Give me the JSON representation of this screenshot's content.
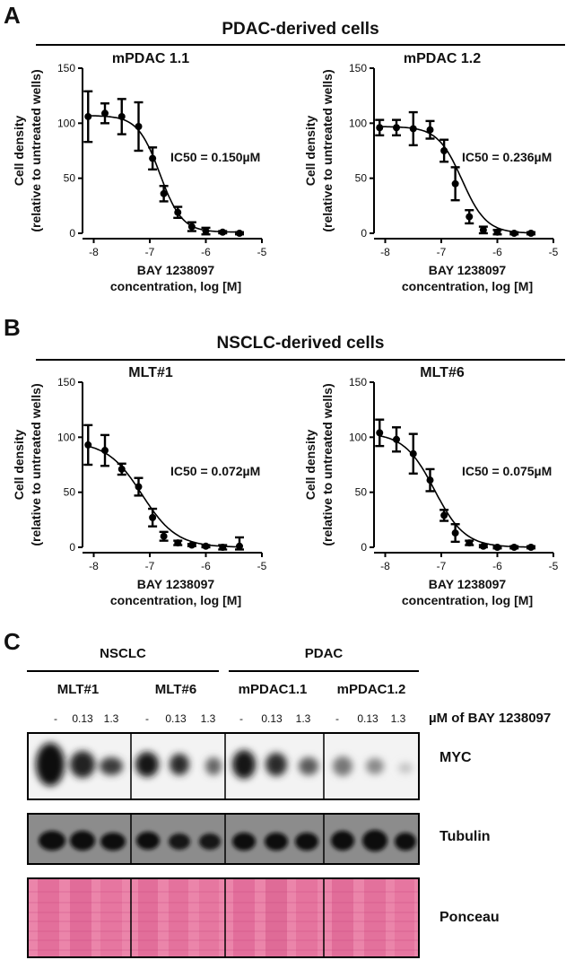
{
  "panels": {
    "A": {
      "letter": "A",
      "title": "PDAC-derived cells"
    },
    "B": {
      "letter": "B",
      "title": "NSCLC-derived cells"
    },
    "C": {
      "letter": "C"
    }
  },
  "axis_common": {
    "ylabel_line1": "Cell density",
    "ylabel_line2": "(relative to untreated wells)",
    "xlabel_line1": "BAY 1238097",
    "xlabel_line2": "concentration, log [M]"
  },
  "chart_data": [
    {
      "type": "scatter",
      "title": "mPDAC 1.1",
      "annotation": "IC50 = 0.150µM",
      "xlabel": "BAY 1238097 concentration, log [M]",
      "ylabel": "Cell density (relative to untreated wells)",
      "xlim": [
        -8.2,
        -5
      ],
      "ylim": [
        0,
        150
      ],
      "xticks": [
        -8,
        -7,
        -6,
        -5
      ],
      "xtick_labels": [
        "-8",
        "-7",
        "-6",
        "-5"
      ],
      "yticks": [
        0,
        50,
        100,
        150
      ],
      "ytick_labels": [
        "0",
        "50",
        "100",
        "150"
      ],
      "x": [
        -8.1,
        -7.8,
        -7.5,
        -7.2,
        -6.95,
        -6.75,
        -6.5,
        -6.25,
        -6.0,
        -5.7,
        -5.4
      ],
      "y": [
        106,
        109,
        106,
        97,
        68,
        36,
        19,
        6,
        2,
        1,
        0
      ],
      "err": [
        23,
        9,
        16,
        22,
        10,
        7,
        5,
        4,
        3,
        1,
        1
      ],
      "fit": {
        "top": 107,
        "bottom": 1,
        "log_ic50": -6.82,
        "hill": 2.2
      }
    },
    {
      "type": "scatter",
      "title": "mPDAC 1.2",
      "annotation": "IC50 = 0.236µM",
      "xlabel": "BAY 1238097 concentration, log [M]",
      "ylabel": "Cell density (relative to untreated wells)",
      "xlim": [
        -8.2,
        -5
      ],
      "ylim": [
        0,
        150
      ],
      "xticks": [
        -8,
        -7,
        -6,
        -5
      ],
      "xtick_labels": [
        "-8",
        "-7",
        "-6",
        "-5"
      ],
      "yticks": [
        0,
        50,
        100,
        150
      ],
      "ytick_labels": [
        "0",
        "50",
        "100",
        "150"
      ],
      "x": [
        -8.1,
        -7.8,
        -7.5,
        -7.2,
        -6.95,
        -6.75,
        -6.5,
        -6.25,
        -6.0,
        -5.7,
        -5.4
      ],
      "y": [
        96,
        96,
        95,
        94,
        75,
        45,
        15,
        3,
        1,
        0,
        0
      ],
      "err": [
        7,
        7,
        15,
        8,
        10,
        15,
        6,
        3,
        2,
        1,
        1
      ],
      "fit": {
        "top": 97,
        "bottom": 0,
        "log_ic50": -6.63,
        "hill": 2.0
      }
    },
    {
      "type": "scatter",
      "title": "MLT#1",
      "annotation": "IC50 = 0.072µM",
      "xlabel": "BAY 1238097 concentration, log [M]",
      "ylabel": "Cell density (relative to untreated wells)",
      "xlim": [
        -8.2,
        -5
      ],
      "ylim": [
        0,
        150
      ],
      "xticks": [
        -8,
        -7,
        -6,
        -5
      ],
      "xtick_labels": [
        "-8",
        "-7",
        "-6",
        "-5"
      ],
      "yticks": [
        0,
        50,
        100,
        150
      ],
      "ytick_labels": [
        "0",
        "50",
        "100",
        "150"
      ],
      "x": [
        -8.1,
        -7.8,
        -7.5,
        -7.2,
        -6.95,
        -6.75,
        -6.5,
        -6.25,
        -6.0,
        -5.7,
        -5.4
      ],
      "y": [
        93,
        88,
        71,
        55,
        27,
        10,
        4,
        2,
        1,
        0,
        1
      ],
      "err": [
        18,
        14,
        5,
        8,
        8,
        4,
        2,
        1,
        1,
        2,
        8
      ],
      "fit": {
        "top": 96,
        "bottom": 0,
        "log_ic50": -7.14,
        "hill": 1.4
      }
    },
    {
      "type": "scatter",
      "title": "MLT#6",
      "annotation": "IC50 = 0.075µM",
      "xlabel": "BAY 1238097 concentration, log [M]",
      "ylabel": "Cell density (relative to untreated wells)",
      "xlim": [
        -8.2,
        -5
      ],
      "ylim": [
        0,
        150
      ],
      "xticks": [
        -8,
        -7,
        -6,
        -5
      ],
      "xtick_labels": [
        "-8",
        "-7",
        "-6",
        "-5"
      ],
      "yticks": [
        0,
        50,
        100,
        150
      ],
      "ytick_labels": [
        "0",
        "50",
        "100",
        "150"
      ],
      "x": [
        -8.1,
        -7.8,
        -7.5,
        -7.2,
        -6.95,
        -6.75,
        -6.5,
        -6.25,
        -6.0,
        -5.7,
        -5.4
      ],
      "y": [
        104,
        98,
        85,
        61,
        29,
        13,
        4,
        1,
        0,
        0,
        0
      ],
      "err": [
        12,
        11,
        18,
        10,
        5,
        8,
        2,
        1,
        1,
        1,
        1
      ],
      "fit": {
        "top": 104,
        "bottom": 0,
        "log_ic50": -7.12,
        "hill": 1.6
      }
    }
  ],
  "western": {
    "groups": [
      {
        "label": "NSCLC"
      },
      {
        "label": "PDAC"
      }
    ],
    "cell_lines": [
      "MLT#1",
      "MLT#6",
      "mPDAC1.1",
      "mPDAC1.2"
    ],
    "concentrations": [
      "-",
      "0.13",
      "1.3"
    ],
    "unit_label": "µM of BAY 1238097",
    "rows": [
      "MYC",
      "Tubulin",
      "Ponceau"
    ],
    "colors": {
      "blot_bg": "#f2f2f2",
      "tubulin_bg": "#8c8c8c",
      "ponceau_bg": "#ea7fa6",
      "band": "#0c0c0c"
    }
  }
}
